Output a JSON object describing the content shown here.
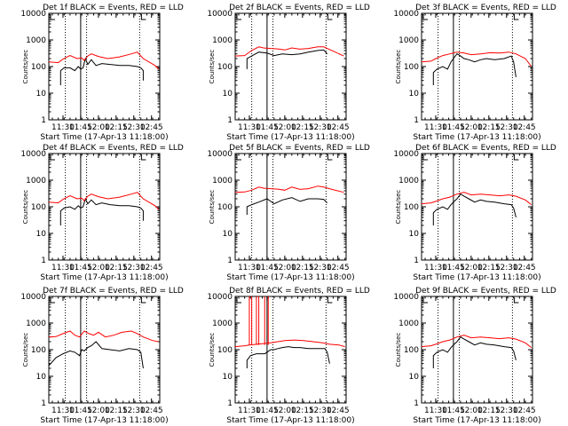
{
  "figure": {
    "x_tick_labels": [
      "11:30",
      "11:45",
      "12:00",
      "12:15",
      "12:30",
      "12:45"
    ],
    "y_tick_labels": [
      "1",
      "10",
      "100",
      "1000",
      "10000"
    ],
    "xlabel": "Start Time (17-Apr-13 11:18:00)",
    "ylabel": "Counts/sec",
    "colors": {
      "events": "#000000",
      "lld": "#ff0000",
      "axes": "#000000"
    }
  },
  "chart_data": [
    {
      "type": "line",
      "title": "Det 1f BLACK = Events, RED = LLD",
      "xlabel": "Start Time (17-Apr-13 11:18:00)",
      "ylabel": "Counts/sec",
      "x_unit": "minutes after 11:18:00",
      "xlim": [
        0,
        94
      ],
      "ylim": [
        1,
        10000
      ],
      "yscale": "log",
      "dotted_lines_x": [
        14,
        32,
        77
      ],
      "solid_line_x": 27,
      "series": [
        {
          "name": "Events",
          "x": [
            10,
            10,
            13,
            18,
            22,
            25,
            27,
            29,
            31,
            33,
            36,
            40,
            45,
            52,
            60,
            68,
            75,
            78,
            80,
            80
          ],
          "y": [
            20,
            70,
            90,
            90,
            70,
            100,
            80,
            90,
            200,
            120,
            180,
            110,
            130,
            120,
            110,
            110,
            100,
            90,
            70,
            30
          ]
        },
        {
          "name": "LLD",
          "x": [
            0,
            8,
            12,
            18,
            24,
            28,
            30,
            33,
            36,
            42,
            50,
            60,
            70,
            75,
            80,
            90,
            93
          ],
          "y": [
            150,
            140,
            190,
            260,
            200,
            210,
            170,
            250,
            300,
            240,
            200,
            230,
            300,
            350,
            200,
            110,
            80
          ]
        }
      ]
    },
    {
      "type": "line",
      "title": "Det 2f BLACK = Events, RED = LLD",
      "xlabel": "Start Time (17-Apr-13 11:18:00)",
      "ylabel": "Counts/sec",
      "x_unit": "minutes after 11:18:00",
      "xlim": [
        0,
        94
      ],
      "ylim": [
        1,
        10000
      ],
      "yscale": "log",
      "dotted_lines_x": [
        14,
        32,
        77
      ],
      "solid_line_x": 27,
      "series": [
        {
          "name": "Events",
          "x": [
            10,
            10,
            14,
            20,
            27,
            33,
            40,
            48,
            55,
            62,
            70,
            75,
            78
          ],
          "y": [
            80,
            200,
            250,
            350,
            320,
            260,
            300,
            280,
            300,
            350,
            400,
            420,
            300
          ]
        },
        {
          "name": "LLD",
          "x": [
            0,
            8,
            14,
            20,
            24,
            30,
            36,
            42,
            48,
            55,
            62,
            70,
            75,
            82,
            92
          ],
          "y": [
            250,
            260,
            400,
            550,
            500,
            480,
            460,
            420,
            500,
            450,
            480,
            550,
            550,
            400,
            250
          ]
        }
      ]
    },
    {
      "type": "line",
      "title": "Det 3f BLACK = Events, RED = LLD",
      "xlabel": "Start Time (17-Apr-13 11:18:00)",
      "ylabel": "Counts/sec",
      "x_unit": "minutes after 11:18:00",
      "xlim": [
        0,
        94
      ],
      "ylim": [
        1,
        10000
      ],
      "yscale": "log",
      "dotted_lines_x": [
        14,
        32,
        77
      ],
      "solid_line_x": 27,
      "series": [
        {
          "name": "Events",
          "x": [
            10,
            10,
            13,
            18,
            22,
            25,
            27,
            30,
            33,
            36,
            40,
            45,
            50,
            55,
            62,
            70,
            76,
            78,
            80
          ],
          "y": [
            20,
            60,
            80,
            100,
            80,
            150,
            200,
            300,
            250,
            200,
            180,
            150,
            180,
            200,
            180,
            200,
            250,
            150,
            40
          ]
        },
        {
          "name": "LLD",
          "x": [
            0,
            8,
            12,
            18,
            24,
            30,
            36,
            42,
            50,
            58,
            66,
            74,
            80,
            88,
            93
          ],
          "y": [
            150,
            160,
            200,
            260,
            300,
            350,
            320,
            280,
            300,
            330,
            320,
            350,
            300,
            200,
            100
          ]
        }
      ]
    },
    {
      "type": "line",
      "title": "Det 4f BLACK = Events, RED = LLD",
      "xlabel": "Start Time (17-Apr-13 11:18:00)",
      "ylabel": "Counts/sec",
      "x_unit": "minutes after 11:18:00",
      "xlim": [
        0,
        94
      ],
      "ylim": [
        1,
        10000
      ],
      "yscale": "log",
      "dotted_lines_x": [
        14,
        32,
        77
      ],
      "solid_line_x": 27,
      "series": [
        {
          "name": "Events",
          "x": [
            10,
            10,
            13,
            18,
            22,
            25,
            27,
            29,
            31,
            33,
            36,
            40,
            45,
            52,
            60,
            68,
            75,
            78,
            80,
            80
          ],
          "y": [
            20,
            70,
            90,
            100,
            80,
            110,
            90,
            100,
            200,
            130,
            180,
            120,
            140,
            120,
            110,
            110,
            100,
            90,
            70,
            30
          ]
        },
        {
          "name": "LLD",
          "x": [
            0,
            8,
            12,
            18,
            24,
            28,
            30,
            33,
            36,
            42,
            50,
            60,
            70,
            75,
            80,
            90,
            93
          ],
          "y": [
            150,
            140,
            190,
            260,
            200,
            210,
            170,
            250,
            300,
            240,
            200,
            230,
            300,
            350,
            200,
            110,
            80
          ]
        }
      ]
    },
    {
      "type": "line",
      "title": "Det 5f BLACK = Events, RED = LLD",
      "xlabel": "Start Time (17-Apr-13 11:18:00)",
      "ylabel": "Counts/sec",
      "x_unit": "minutes after 11:18:00",
      "xlim": [
        0,
        94
      ],
      "ylim": [
        1,
        10000
      ],
      "yscale": "log",
      "dotted_lines_x": [
        14,
        32,
        77
      ],
      "solid_line_x": 27,
      "series": [
        {
          "name": "Events",
          "x": [
            10,
            10,
            14,
            20,
            27,
            33,
            40,
            48,
            55,
            62,
            70,
            75,
            78
          ],
          "y": [
            50,
            100,
            120,
            150,
            200,
            130,
            180,
            220,
            160,
            200,
            200,
            190,
            140
          ]
        },
        {
          "name": "LLD",
          "x": [
            0,
            8,
            14,
            20,
            24,
            30,
            36,
            42,
            48,
            55,
            62,
            70,
            75,
            82,
            92
          ],
          "y": [
            350,
            360,
            420,
            550,
            500,
            480,
            460,
            420,
            550,
            450,
            480,
            600,
            550,
            450,
            350
          ]
        }
      ]
    },
    {
      "type": "line",
      "title": "Det 6f BLACK = Events, RED = LLD",
      "xlabel": "Start Time (17-Apr-13 11:18:00)",
      "ylabel": "Counts/sec",
      "x_unit": "minutes after 11:18:00",
      "xlim": [
        0,
        94
      ],
      "ylim": [
        1,
        10000
      ],
      "yscale": "log",
      "dotted_lines_x": [
        14,
        32,
        77
      ],
      "solid_line_x": 27,
      "series": [
        {
          "name": "Events",
          "x": [
            10,
            10,
            13,
            18,
            22,
            25,
            27,
            30,
            33,
            36,
            40,
            45,
            50,
            55,
            62,
            70,
            76,
            78,
            80
          ],
          "y": [
            20,
            60,
            80,
            100,
            80,
            120,
            150,
            200,
            300,
            250,
            200,
            150,
            180,
            160,
            150,
            130,
            120,
            90,
            40
          ]
        },
        {
          "name": "LLD",
          "x": [
            0,
            8,
            12,
            18,
            24,
            30,
            36,
            42,
            50,
            58,
            66,
            74,
            80,
            88,
            93
          ],
          "y": [
            130,
            140,
            160,
            200,
            230,
            300,
            350,
            280,
            300,
            280,
            260,
            280,
            250,
            180,
            120
          ]
        }
      ]
    },
    {
      "type": "line",
      "title": "Det 7f BLACK = Events, RED = LLD",
      "xlabel": "Start Time (17-Apr-13 11:18:00)",
      "ylabel": "Counts/sec",
      "x_unit": "minutes after 11:18:00",
      "xlim": [
        0,
        94
      ],
      "ylim": [
        1,
        10000
      ],
      "yscale": "log",
      "dotted_lines_x": [
        14,
        32,
        77
      ],
      "solid_line_x": 27,
      "series": [
        {
          "name": "Events",
          "x": [
            0,
            6,
            12,
            18,
            22,
            26,
            28,
            30,
            33,
            36,
            40,
            45,
            52,
            60,
            68,
            75,
            78,
            80
          ],
          "y": [
            25,
            50,
            70,
            90,
            80,
            60,
            100,
            90,
            120,
            140,
            200,
            110,
            100,
            90,
            110,
            100,
            80,
            20
          ]
        },
        {
          "name": "LLD",
          "x": [
            0,
            6,
            12,
            18,
            22,
            26,
            30,
            34,
            38,
            42,
            48,
            55,
            62,
            70,
            75,
            80,
            88,
            93
          ],
          "y": [
            300,
            310,
            400,
            500,
            350,
            300,
            500,
            400,
            350,
            450,
            300,
            350,
            450,
            500,
            400,
            300,
            220,
            200
          ]
        }
      ]
    },
    {
      "type": "line",
      "title": "Det 8f BLACK = Events, RED = LLD",
      "xlabel": "Start Time (17-Apr-13 11:18:00)",
      "ylabel": "Counts/sec",
      "x_unit": "minutes after 11:18:00",
      "xlim": [
        0,
        94
      ],
      "ylim": [
        1,
        10000
      ],
      "yscale": "log",
      "dotted_lines_x": [
        14,
        32,
        77
      ],
      "solid_line_x": 27,
      "series": [
        {
          "name": "Events",
          "x": [
            10,
            10,
            13,
            18,
            22,
            25,
            27,
            30,
            33,
            36,
            40,
            45,
            50,
            55,
            62,
            70,
            76,
            78,
            80
          ],
          "y": [
            20,
            40,
            60,
            70,
            70,
            70,
            80,
            100,
            100,
            110,
            120,
            130,
            120,
            120,
            110,
            110,
            110,
            80,
            30
          ]
        },
        {
          "name": "LLD",
          "x": [
            0,
            8,
            12,
            18,
            24,
            30,
            36,
            42,
            50,
            58,
            66,
            74,
            80,
            88,
            93
          ],
          "y": [
            130,
            140,
            150,
            160,
            170,
            180,
            200,
            220,
            230,
            220,
            200,
            180,
            160,
            150,
            130
          ]
        }
      ],
      "spikes": {
        "name": "LLD",
        "x": [
          12,
          14,
          18,
          20,
          25,
          28
        ],
        "y": [
          10000,
          10000,
          10000,
          10000,
          10000,
          10000
        ]
      }
    },
    {
      "type": "line",
      "title": "Det 9f BLACK = Events, RED = LLD",
      "xlabel": "Start Time (17-Apr-13 11:18:00)",
      "ylabel": "Counts/sec",
      "x_unit": "minutes after 11:18:00",
      "xlim": [
        0,
        94
      ],
      "ylim": [
        1,
        10000
      ],
      "yscale": "log",
      "dotted_lines_x": [
        14,
        32,
        77
      ],
      "solid_line_x": 27,
      "series": [
        {
          "name": "Events",
          "x": [
            10,
            10,
            13,
            18,
            22,
            25,
            27,
            30,
            33,
            36,
            40,
            45,
            50,
            55,
            62,
            70,
            76,
            78,
            80
          ],
          "y": [
            20,
            60,
            80,
            100,
            80,
            120,
            150,
            200,
            300,
            250,
            200,
            150,
            180,
            160,
            150,
            130,
            120,
            90,
            40
          ]
        },
        {
          "name": "LLD",
          "x": [
            0,
            8,
            12,
            18,
            24,
            30,
            36,
            42,
            50,
            58,
            66,
            74,
            80,
            88,
            93
          ],
          "y": [
            130,
            140,
            160,
            200,
            230,
            300,
            350,
            280,
            300,
            280,
            260,
            280,
            250,
            180,
            120
          ]
        }
      ]
    }
  ]
}
